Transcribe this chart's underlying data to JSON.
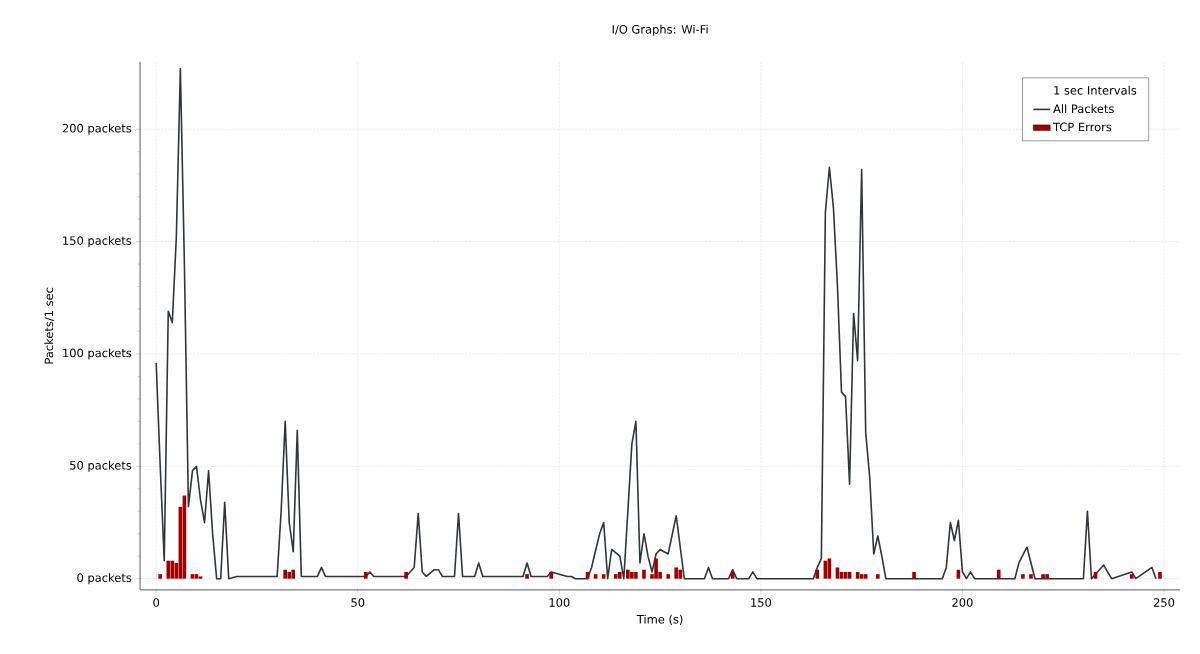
{
  "chart_data": {
    "type": "line",
    "title": "I/O Graphs: Wi-Fi",
    "xlabel": "Time (s)",
    "ylabel": "Packets/1 sec",
    "legend_title": "1 sec Intervals",
    "legend": "top right",
    "grid": true,
    "xlim": [
      -4,
      254
    ],
    "ylim": [
      -5,
      230
    ],
    "xticks": [
      0,
      50,
      100,
      150,
      200,
      250
    ],
    "yticks": [
      {
        "value": 0,
        "label": "0 packets"
      },
      {
        "value": 50,
        "label": "50 packets"
      },
      {
        "value": 100,
        "label": "100 packets"
      },
      {
        "value": 150,
        "label": "150 packets"
      },
      {
        "value": 200,
        "label": "200 packets"
      }
    ],
    "series": [
      {
        "name": "All Packets",
        "color": "#2f3538",
        "x": [
          0,
          1,
          2,
          3,
          4,
          5,
          6,
          7,
          8,
          9,
          10,
          11,
          12,
          13,
          14,
          15,
          16,
          17,
          18,
          20,
          30,
          31,
          32,
          33,
          34,
          35,
          36,
          40,
          41,
          42,
          52,
          53,
          54,
          62,
          63,
          64,
          65,
          66,
          67,
          69,
          70,
          71,
          74,
          75,
          76,
          79,
          80,
          81,
          91,
          92,
          93,
          97,
          98,
          102,
          103,
          104,
          107,
          108,
          110,
          111,
          112,
          113,
          115,
          116,
          118,
          119,
          120,
          121,
          122,
          123,
          124,
          125,
          127,
          129,
          131,
          136,
          137,
          138,
          142,
          143,
          144,
          147,
          148,
          149,
          163,
          164,
          165,
          166,
          167,
          168,
          169,
          170,
          171,
          172,
          173,
          174,
          175,
          176,
          177,
          178,
          179,
          180,
          181,
          195,
          196,
          197,
          198,
          199,
          200,
          201,
          202,
          203,
          213,
          214,
          216,
          218,
          230,
          231,
          232,
          235,
          237,
          242,
          243,
          247,
          248
        ],
        "values": [
          96,
          50,
          8,
          119,
          114,
          152,
          227,
          140,
          32,
          48,
          50,
          35,
          25,
          48,
          20,
          0,
          0,
          34,
          0,
          1,
          1,
          30,
          70,
          25,
          12,
          66,
          1,
          1,
          5,
          1,
          1,
          3,
          1,
          1,
          3,
          5,
          29,
          3,
          1,
          4,
          4,
          1,
          1,
          29,
          1,
          1,
          7,
          1,
          1,
          7,
          1,
          1,
          3,
          1,
          1,
          0,
          0,
          5,
          20,
          25,
          0,
          13,
          10,
          0,
          60,
          70,
          7,
          20,
          10,
          3,
          11,
          13,
          11,
          28,
          0,
          0,
          5,
          0,
          0,
          4,
          0,
          0,
          3,
          0,
          0,
          5,
          9,
          163,
          183,
          165,
          130,
          83,
          81,
          42,
          118,
          97,
          182,
          65,
          45,
          11,
          19,
          10,
          0,
          0,
          5,
          25,
          17,
          26,
          3,
          0,
          3,
          0,
          0,
          7,
          14,
          0,
          0,
          30,
          0,
          6,
          0,
          3,
          0,
          5,
          0
        ]
      },
      {
        "name": "TCP Errors",
        "type": "bar",
        "color": "#a00000",
        "x": [
          1,
          3,
          4,
          5,
          6,
          7,
          9,
          10,
          11,
          32,
          33,
          34,
          52,
          62,
          92,
          98,
          107,
          109,
          111,
          114,
          115,
          117,
          118,
          119,
          121,
          123,
          124,
          125,
          127,
          129,
          130,
          143,
          164,
          166,
          167,
          169,
          170,
          171,
          172,
          174,
          175,
          176,
          179,
          188,
          199,
          209,
          215,
          217,
          220,
          221,
          233,
          242,
          249
        ],
        "values": [
          2,
          8,
          8,
          7,
          32,
          37,
          2,
          2,
          1,
          4,
          3,
          4,
          3,
          3,
          2,
          3,
          3,
          2,
          2,
          2,
          3,
          4,
          3,
          3,
          4,
          2,
          9,
          3,
          2,
          5,
          4,
          3,
          4,
          8,
          9,
          5,
          3,
          3,
          3,
          3,
          2,
          2,
          2,
          3,
          4,
          4,
          2,
          2,
          2,
          2,
          3,
          2,
          3
        ]
      }
    ]
  }
}
